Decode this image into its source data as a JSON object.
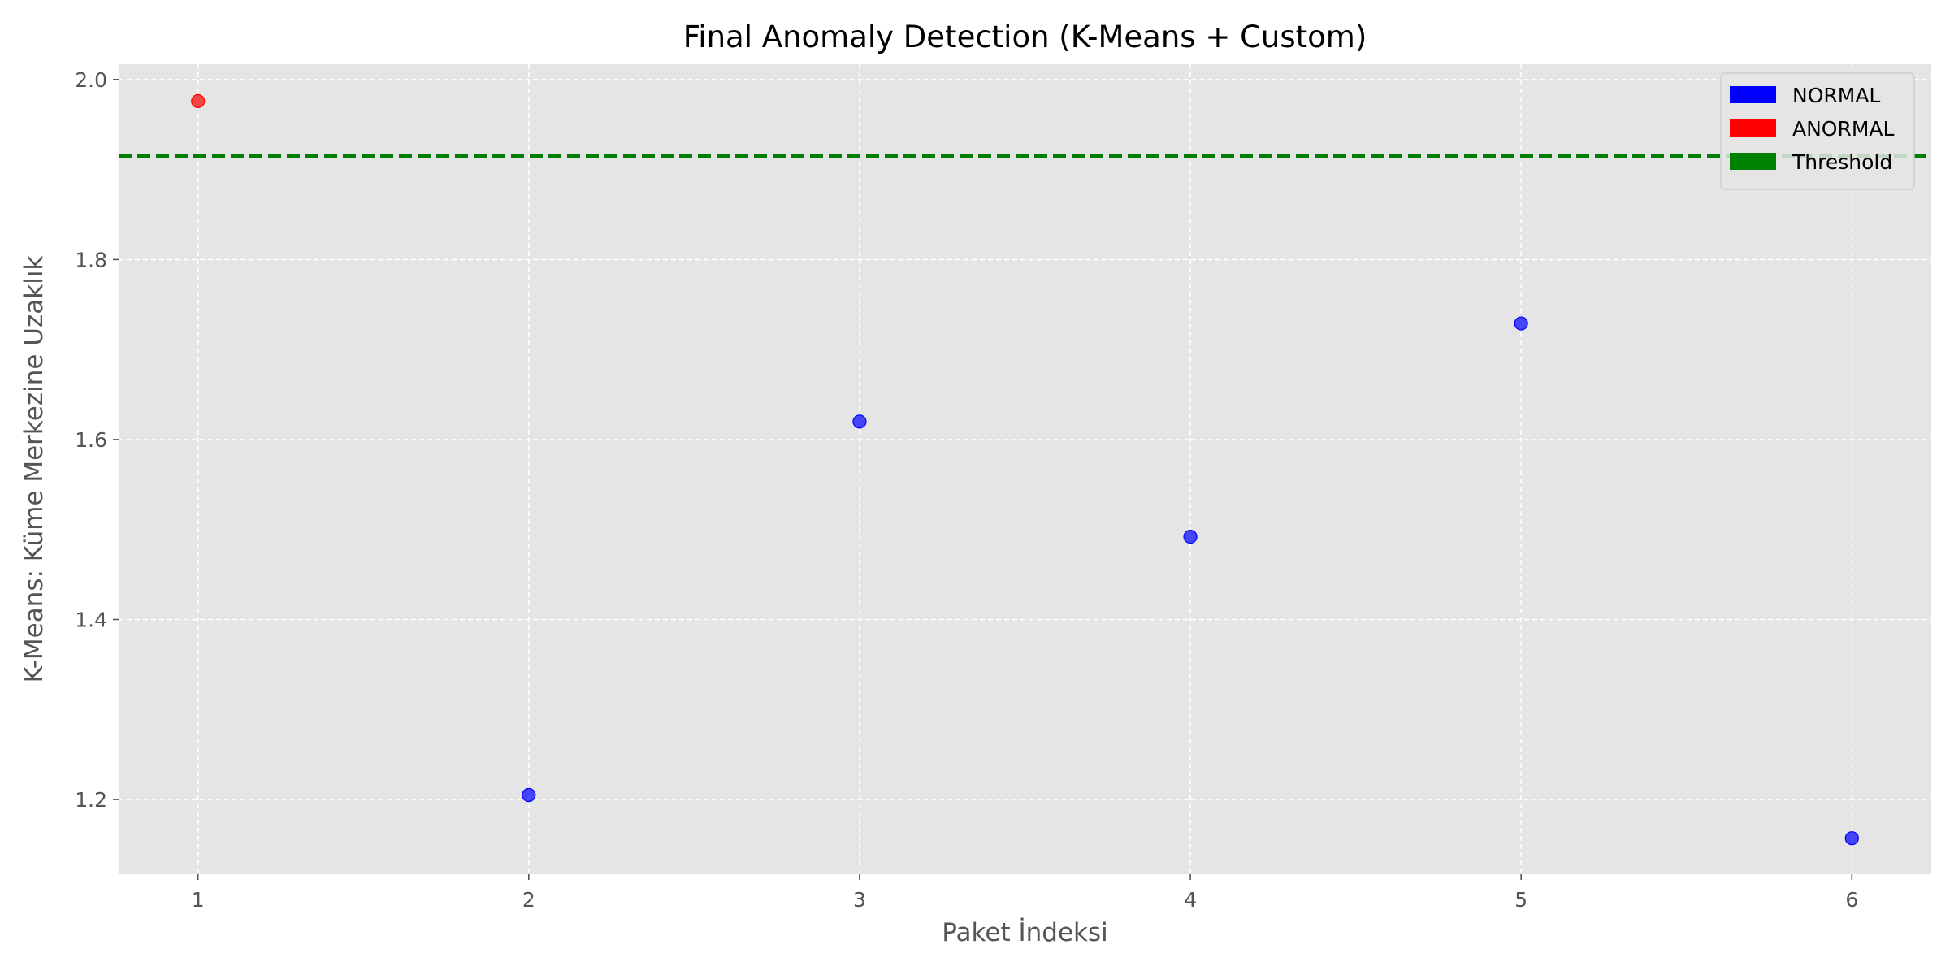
{
  "chart_data": {
    "type": "scatter",
    "title": "Final Anomaly Detection (K-Means + Custom)",
    "xlabel": "Paket İndeksi",
    "ylabel": "K-Means: Küme Merkezine Uzaklık",
    "xlim": [
      0.76,
      6.24
    ],
    "ylim": [
      1.117,
      2.017
    ],
    "xticks": [
      "1",
      "2",
      "3",
      "4",
      "5",
      "6"
    ],
    "yticks": [
      "1.2",
      "1.4",
      "1.6",
      "1.8",
      "2.0"
    ],
    "grid": true,
    "legend_position": "top-right",
    "threshold": 1.915,
    "points": [
      {
        "x": 1,
        "y": 1.976,
        "label": "ANORMAL"
      },
      {
        "x": 2,
        "y": 1.205,
        "label": "NORMAL"
      },
      {
        "x": 3,
        "y": 1.62,
        "label": "NORMAL"
      },
      {
        "x": 4,
        "y": 1.492,
        "label": "NORMAL"
      },
      {
        "x": 5,
        "y": 1.729,
        "label": "NORMAL"
      },
      {
        "x": 6,
        "y": 1.157,
        "label": "NORMAL"
      }
    ],
    "legend": [
      {
        "label": "NORMAL",
        "color": "#0000ff"
      },
      {
        "label": "ANORMAL",
        "color": "#ff0000"
      },
      {
        "label": "Threshold",
        "color": "#008000"
      }
    ],
    "colors": {
      "normal": "#0000ff",
      "anormal": "#ff0000",
      "threshold": "#008000",
      "plot_background": "#e5e5e5",
      "grid": "#ffffff"
    }
  }
}
